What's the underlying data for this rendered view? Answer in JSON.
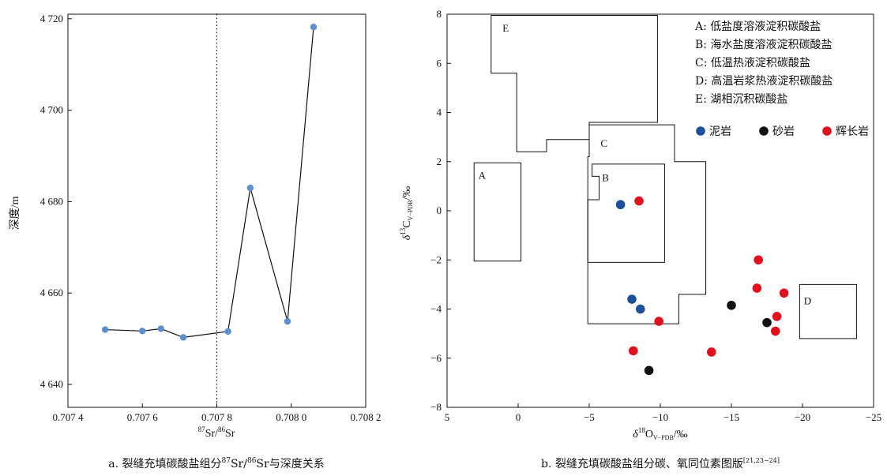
{
  "chart_data": [
    {
      "type": "line",
      "xlabel_sup1": "87",
      "xlabel_t1": "Sr/",
      "xlabel_sup2": "86",
      "xlabel_t2": "Sr",
      "ylabel": "深度/m",
      "xlim": [
        0.7074,
        0.7082
      ],
      "ylim": [
        4635,
        4721
      ],
      "xticks": [
        {
          "v": 0.7074,
          "label": "0.707 4"
        },
        {
          "v": 0.7076,
          "label": "0.707 6"
        },
        {
          "v": 0.7078,
          "label": "0.707 8"
        },
        {
          "v": 0.708,
          "label": "0.708 0"
        },
        {
          "v": 0.7082,
          "label": "0.708 2"
        }
      ],
      "yticks": [
        {
          "v": 4640,
          "label": "4 640"
        },
        {
          "v": 4660,
          "label": "4 660"
        },
        {
          "v": 4680,
          "label": "4 680"
        },
        {
          "v": 4700,
          "label": "4 700"
        },
        {
          "v": 4720,
          "label": "4 720"
        }
      ],
      "reference_x": 0.7078,
      "points": [
        {
          "x": 0.7075,
          "y": 4652.0
        },
        {
          "x": 0.7076,
          "y": 4651.7
        },
        {
          "x": 0.70765,
          "y": 4652.2
        },
        {
          "x": 0.70771,
          "y": 4650.3
        },
        {
          "x": 0.70783,
          "y": 4651.6
        },
        {
          "x": 0.70789,
          "y": 4683.0
        },
        {
          "x": 0.70799,
          "y": 4653.8
        },
        {
          "x": 0.70806,
          "y": 4718.2
        }
      ],
      "point_color": "#5b8fd0",
      "caption_pre": "a. 裂缝充填碳酸盐组分",
      "caption_sup1": "87",
      "caption_mid": "Sr/",
      "caption_sup2": "86",
      "caption_post": "Sr与深度关系"
    },
    {
      "type": "scatter",
      "xlabel_main": "δ",
      "xlabel_sup": "18",
      "xlabel_o": "O",
      "xlabel_sub": "V−PDB",
      "xlabel_unit": "/‰",
      "ylabel_main": "δ",
      "ylabel_sup": "13",
      "ylabel_c": "C",
      "ylabel_sub": "V−PDB",
      "ylabel_unit": "/‰",
      "xlim": [
        5,
        -25
      ],
      "ylim": [
        -8,
        8
      ],
      "xticks": [
        {
          "v": 5,
          "label": "5"
        },
        {
          "v": 0,
          "label": "0"
        },
        {
          "v": -5,
          "label": "−5"
        },
        {
          "v": -10,
          "label": "−10"
        },
        {
          "v": -15,
          "label": "−15"
        },
        {
          "v": -20,
          "label": "−20"
        },
        {
          "v": -25,
          "label": "−25"
        }
      ],
      "yticks": [
        {
          "v": 8,
          "label": "8"
        },
        {
          "v": 6,
          "label": "6"
        },
        {
          "v": 4,
          "label": "4"
        },
        {
          "v": 2,
          "label": "2"
        },
        {
          "v": 0,
          "label": "0"
        },
        {
          "v": -2,
          "label": "−2"
        },
        {
          "v": -4,
          "label": "−4"
        },
        {
          "v": -6,
          "label": "−6"
        },
        {
          "v": -8,
          "label": "−8"
        }
      ],
      "regions": [
        {
          "id": "A",
          "poly": [
            [
              3.1,
              1.95
            ],
            [
              -0.2,
              1.95
            ],
            [
              -0.2,
              -2.05
            ],
            [
              3.1,
              -2.05
            ]
          ],
          "label_at": [
            2.8,
            1.3
          ]
        },
        {
          "id": "B",
          "poly": [
            [
              -5.2,
              1.9
            ],
            [
              -10.3,
              1.9
            ],
            [
              -10.3,
              -2.1
            ],
            [
              -4.9,
              -2.1
            ],
            [
              -4.9,
              0.45
            ],
            [
              -5.7,
              0.45
            ],
            [
              -5.7,
              1.4
            ],
            [
              -5.2,
              1.4
            ]
          ],
          "label_at": [
            -5.9,
            1.2
          ]
        },
        {
          "id": "C",
          "poly": [
            [
              -5.0,
              3.5
            ],
            [
              -11.0,
              3.5
            ],
            [
              -11.0,
              2.0
            ],
            [
              -13.2,
              2.0
            ],
            [
              -13.2,
              -3.4
            ],
            [
              -11.3,
              -3.4
            ],
            [
              -11.3,
              -4.6
            ],
            [
              -4.9,
              -4.6
            ],
            [
              -4.9,
              2.2
            ],
            [
              -5.0,
              2.2
            ]
          ],
          "label_at": [
            -5.8,
            2.6
          ]
        },
        {
          "id": "E",
          "poly": [
            [
              1.9,
              7.95
            ],
            [
              -9.8,
              7.95
            ],
            [
              -9.8,
              3.6
            ],
            [
              -5.0,
              3.6
            ],
            [
              -5.0,
              2.9
            ],
            [
              -2.0,
              2.9
            ],
            [
              -2.0,
              2.4
            ],
            [
              0.1,
              2.4
            ],
            [
              0.1,
              5.6
            ],
            [
              1.9,
              5.6
            ]
          ],
          "label_at": [
            1.1,
            7.3
          ]
        },
        {
          "id": "D",
          "poly": [
            [
              -19.8,
              -3.0
            ],
            [
              -23.8,
              -3.0
            ],
            [
              -23.8,
              -5.2
            ],
            [
              -19.8,
              -5.2
            ]
          ],
          "label_at": [
            -20.1,
            -3.8
          ]
        }
      ],
      "region_legend": [
        "A: 低盐度溶液淀积碳酸盐",
        "B: 海水盐度溶液淀积碳酸盐",
        "C: 低温热液淀积碳酸盐",
        "D: 高温岩浆热液淀积碳酸盐",
        "E: 湖相沉积碳酸盐"
      ],
      "series": [
        {
          "name": "泥岩",
          "color": "#1c4f9c",
          "points": [
            [
              -7.2,
              0.25
            ],
            [
              -8.0,
              -3.6
            ],
            [
              -8.6,
              -4.0
            ]
          ]
        },
        {
          "name": "砂岩",
          "color": "#111111",
          "points": [
            [
              -15.0,
              -3.85
            ],
            [
              -17.5,
              -4.55
            ],
            [
              -9.2,
              -6.5
            ]
          ]
        },
        {
          "name": "辉长岩",
          "color": "#e0101e",
          "points": [
            [
              -8.5,
              0.4
            ],
            [
              -16.9,
              -2.0
            ],
            [
              -16.8,
              -3.15
            ],
            [
              -18.7,
              -3.35
            ],
            [
              -18.2,
              -4.3
            ],
            [
              -18.1,
              -4.9
            ],
            [
              -9.9,
              -4.5
            ],
            [
              -8.1,
              -5.7
            ],
            [
              -13.6,
              -5.75
            ]
          ]
        }
      ],
      "caption_main": "b. 裂缝充填碳酸盐组分碳、氧同位素图版",
      "caption_ref": "[21,23−24]"
    }
  ]
}
